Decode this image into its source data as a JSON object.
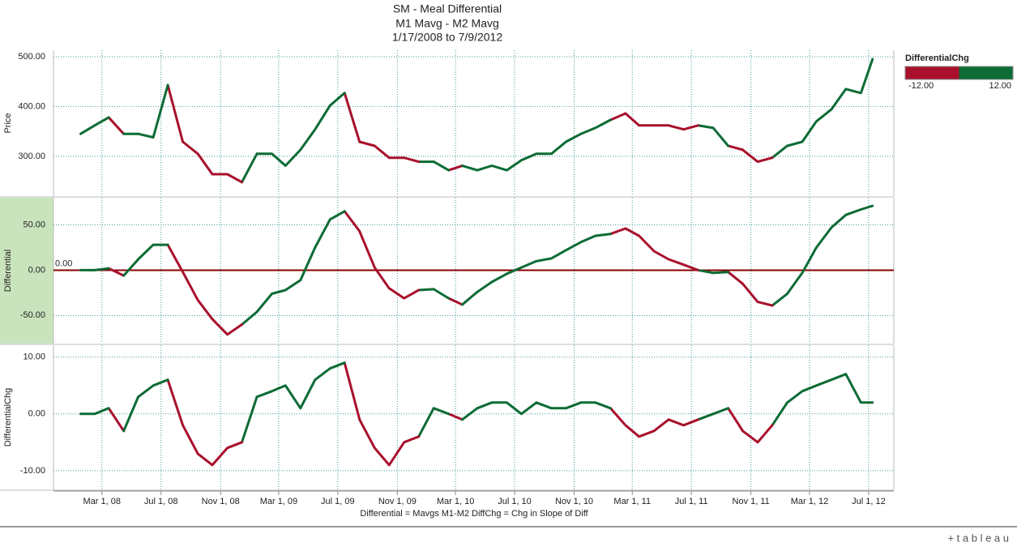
{
  "chart_data": {
    "type": "line",
    "title": [
      "SM - Meal Differential",
      "M1 Mavg - M2 Mavg",
      "1/17/2008 to 7/9/2012"
    ],
    "x_label": "Differential = Mavgs M1-M2 DiffChg = Chg in Slope of Diff",
    "x": [
      "2008-01-17",
      "2008-02-15",
      "2008-03-15",
      "2008-04-15",
      "2008-05-15",
      "2008-06-15",
      "2008-07-15",
      "2008-08-15",
      "2008-09-15",
      "2008-10-15",
      "2008-11-15",
      "2008-12-15",
      "2009-01-15",
      "2009-02-15",
      "2009-03-15",
      "2009-04-15",
      "2009-05-15",
      "2009-06-15",
      "2009-07-15",
      "2009-08-15",
      "2009-09-15",
      "2009-10-15",
      "2009-11-15",
      "2009-12-15",
      "2010-01-15",
      "2010-02-15",
      "2010-03-15",
      "2010-04-15",
      "2010-05-15",
      "2010-06-15",
      "2010-07-15",
      "2010-08-15",
      "2010-09-15",
      "2010-10-15",
      "2010-11-15",
      "2010-12-15",
      "2011-01-15",
      "2011-02-15",
      "2011-03-15",
      "2011-04-15",
      "2011-05-15",
      "2011-06-15",
      "2011-07-15",
      "2011-08-15",
      "2011-09-15",
      "2011-10-15",
      "2011-11-15",
      "2011-12-15",
      "2012-01-15",
      "2012-02-15",
      "2012-03-15",
      "2012-04-15",
      "2012-05-15",
      "2012-06-15",
      "2012-07-09"
    ],
    "xlim": [
      "2007-11-22",
      "2012-08-22"
    ],
    "xticks": [
      {
        "value": "2008-03-01",
        "label": "Mar 1, 08"
      },
      {
        "value": "2008-07-01",
        "label": "Jul 1, 08"
      },
      {
        "value": "2008-11-01",
        "label": "Nov 1, 08"
      },
      {
        "value": "2009-03-01",
        "label": "Mar 1, 09"
      },
      {
        "value": "2009-07-01",
        "label": "Jul 1, 09"
      },
      {
        "value": "2009-11-01",
        "label": "Nov 1, 09"
      },
      {
        "value": "2010-03-01",
        "label": "Mar 1, 10"
      },
      {
        "value": "2010-07-01",
        "label": "Jul 1, 10"
      },
      {
        "value": "2010-11-01",
        "label": "Nov 1, 10"
      },
      {
        "value": "2011-03-01",
        "label": "Mar 1, 11"
      },
      {
        "value": "2011-07-01",
        "label": "Jul 1, 11"
      },
      {
        "value": "2011-11-01",
        "label": "Nov 1, 11"
      },
      {
        "value": "2012-03-01",
        "label": "Mar 1, 12"
      },
      {
        "value": "2012-07-01",
        "label": "Jul 1, 12"
      }
    ],
    "grid": true,
    "color_scale": {
      "field": "DifferentialChg",
      "colors": [
        "#a8102c",
        "#0d6b35"
      ],
      "ticks": [
        {
          "value": -12,
          "label": "-12.00"
        },
        {
          "value": 12,
          "label": "12.00"
        }
      ]
    },
    "panels": [
      {
        "ylim": [
          220,
          513
        ],
        "yticks": [
          {
            "value": 300,
            "label": "300.00"
          },
          {
            "value": 400,
            "label": "400.00"
          },
          {
            "value": 500,
            "label": "500.00"
          }
        ],
        "series": [
          {
            "name": "Price",
            "values": [
              345,
              362,
              378,
              345,
              345,
              338,
              443,
              329,
              305,
              264,
              264,
              248,
              305,
              305,
              281,
              313,
              354,
              402,
              427,
              329,
              321,
              297,
              297,
              289,
              289,
              272,
              281,
              272,
              281,
              272,
              292,
              305,
              305,
              329,
              345,
              357,
              373,
              386,
              362,
              362,
              362,
              354,
              362,
              357,
              321,
              313,
              289,
              297,
              321,
              329,
              370,
              394,
              435,
              427,
              495
            ]
          }
        ]
      },
      {
        "ylim": [
          -81,
          80
        ],
        "yticks": [
          {
            "value": -50,
            "label": "-50.00"
          },
          {
            "value": 0,
            "label": "0.00"
          },
          {
            "value": 50,
            "label": "50.00"
          }
        ],
        "highlight": true,
        "reference_line": {
          "value": 0,
          "label": "0.00",
          "color": "#8b0000"
        },
        "series": [
          {
            "name": "Differential",
            "values": [
              0,
              0,
              2,
              -6,
              12,
              28,
              28,
              -2,
              -33,
              -54,
              -71,
              -60,
              -46,
              -26,
              -22,
              -11,
              25,
              56,
              65,
              43,
              3,
              -20,
              -31,
              -22,
              -21,
              -31,
              -38,
              -24,
              -13,
              -4,
              3,
              10,
              13,
              22,
              31,
              38,
              40,
              46,
              38,
              21,
              12,
              6,
              0,
              -3,
              -2,
              -15,
              -35,
              -39,
              -26,
              -3,
              25,
              47,
              61,
              67,
              71
            ]
          }
        ]
      },
      {
        "ylim": [
          -13.3,
          12.1
        ],
        "yticks": [
          {
            "value": -10,
            "label": "-10.00"
          },
          {
            "value": 0,
            "label": "0.00"
          },
          {
            "value": 10,
            "label": "10.00"
          }
        ],
        "series": [
          {
            "name": "DifferentialChg",
            "values": [
              0,
              0,
              1,
              -3,
              3,
              5,
              6,
              -2,
              -7,
              -9,
              -6,
              -5,
              3,
              4,
              5,
              1,
              6,
              8,
              9,
              -1,
              -6,
              -9,
              -5,
              -4,
              1,
              0,
              -1,
              1,
              2,
              2,
              0,
              2,
              1,
              1,
              2,
              2,
              1,
              -2,
              -4,
              -3,
              -1,
              -2,
              -1,
              0,
              1,
              -3,
              -5,
              -2,
              2,
              4,
              5,
              6,
              7,
              2,
              2
            ]
          }
        ]
      }
    ],
    "brand": "+ t a b l e a u"
  }
}
